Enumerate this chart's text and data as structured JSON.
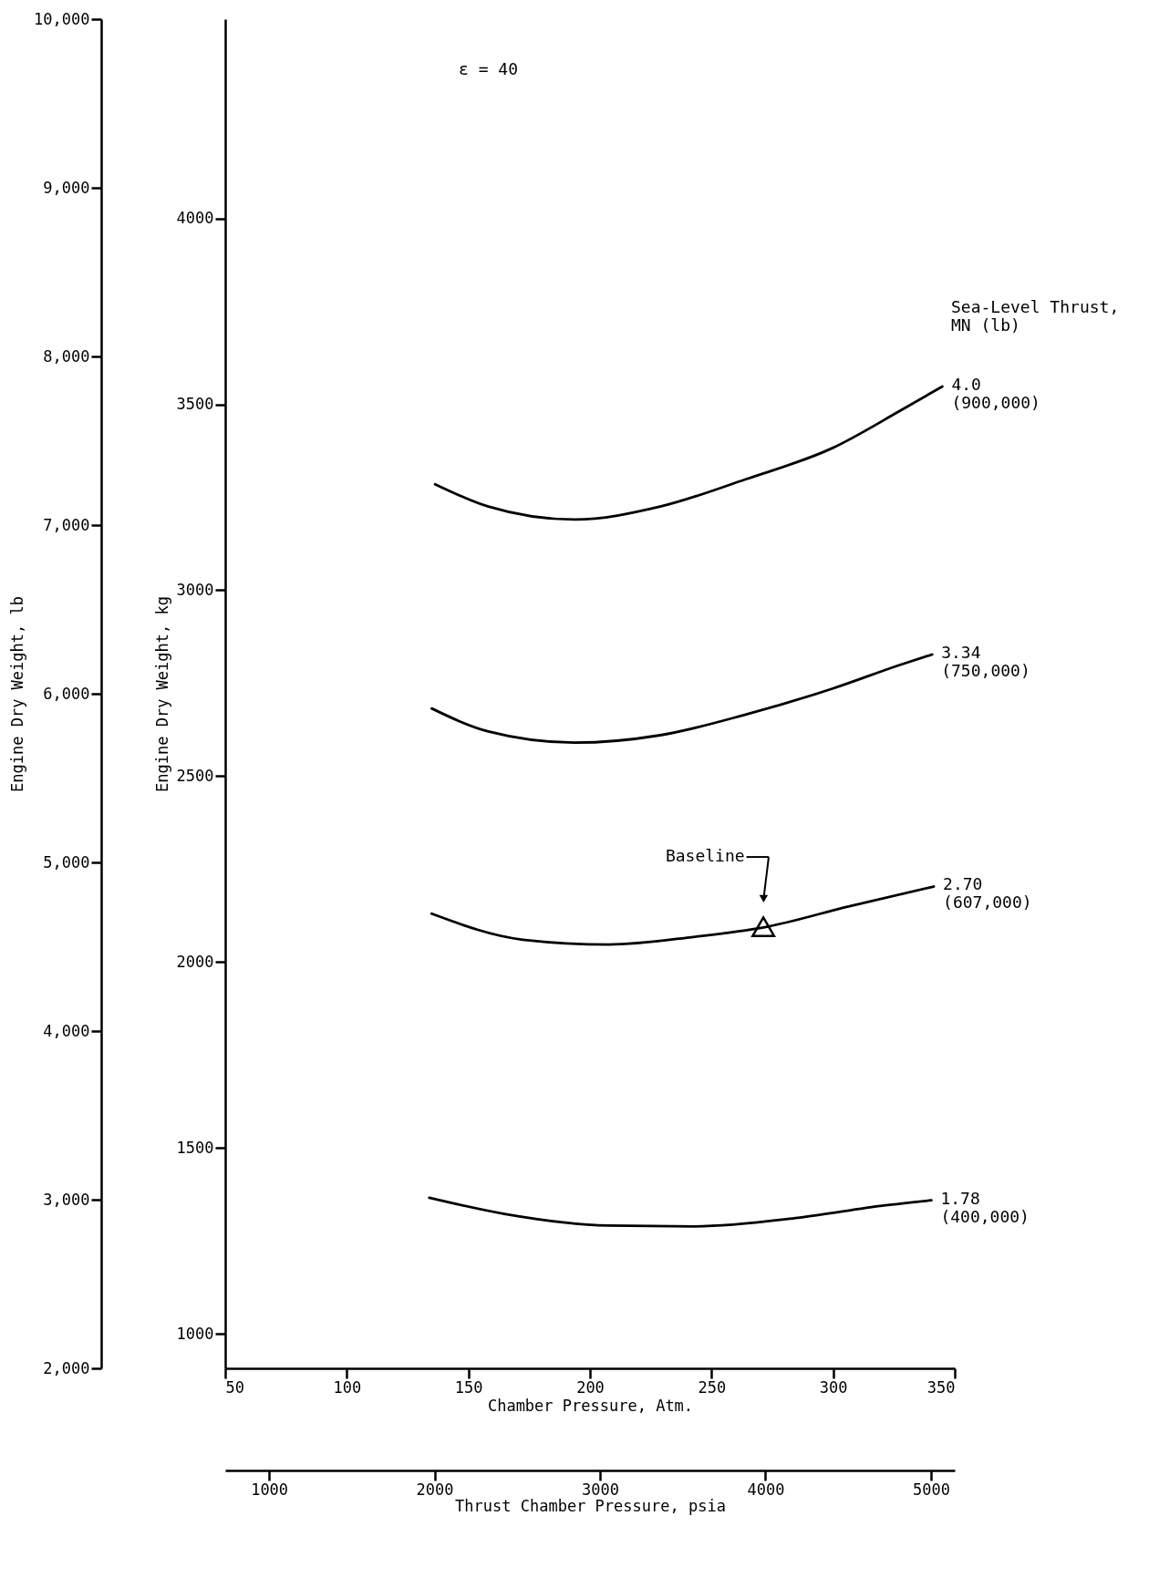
{
  "chart_data": {
    "type": "line",
    "xlabel": "Chamber Pressure, Atm.",
    "ylabel": "Engine Dry Weight, kg",
    "y2label": "Engine Dry Weight, lb",
    "x2label": "Thrust Chamber Pressure, psia",
    "legend_title": "Sea-Level Thrust,\nMN (lb)",
    "annotations": [
      "ε = 40",
      "Baseline"
    ],
    "xlim": [
      50,
      350
    ],
    "xticks": [
      50,
      100,
      150,
      200,
      250,
      300,
      350
    ],
    "x2lim": [
      734.8,
      5143.6
    ],
    "x2ticks": [
      1000,
      2000,
      3000,
      4000,
      5000
    ],
    "ylim": [
      907.2,
      4535.9
    ],
    "yticks": [
      1000,
      1500,
      2000,
      2500,
      3000,
      3500,
      4000
    ],
    "y2lim": [
      2000,
      10000
    ],
    "y2ticks": [
      {
        "value": 2000,
        "label": "2,000"
      },
      {
        "value": 3000,
        "label": "3,000"
      },
      {
        "value": 4000,
        "label": "4,000"
      },
      {
        "value": 5000,
        "label": "5,000"
      },
      {
        "value": 6000,
        "label": "6,000"
      },
      {
        "value": 7000,
        "label": "7,000"
      },
      {
        "value": 8000,
        "label": "8,000"
      },
      {
        "value": 9000,
        "label": "9,000"
      },
      {
        "value": 10000,
        "label": "10,000"
      }
    ],
    "grid": false,
    "series": [
      {
        "name": "4.0\n(900,000)",
        "color": "#000000",
        "x": [
          136.3,
          158.2,
          193.6,
          228.9,
          264.3,
          299.6,
          327.9,
          344.9
        ],
        "values": [
          3285,
          3225,
          3190,
          3225,
          3299,
          3382,
          3484,
          3548
        ]
      },
      {
        "name": "3.34\n(750,000)",
        "color": "#000000",
        "x": [
          134.9,
          158.2,
          193.6,
          228.9,
          264.3,
          299.6,
          327.9,
          340.7
        ],
        "values": [
          2682,
          2620,
          2590,
          2610,
          2666,
          2735,
          2800,
          2827
        ]
      },
      {
        "name": "2.70\n(607,000)",
        "color": "#000000",
        "x": [
          134.9,
          172.4,
          207.7,
          243.1,
          271.4,
          306.7,
          341.4
        ],
        "values": [
          2130,
          2060,
          2047,
          2068,
          2093,
          2150,
          2203
        ]
      },
      {
        "name": "1.78\n(400,000)",
        "color": "#000000",
        "x": [
          133.9,
          165.3,
          207.7,
          243.1,
          285.5,
          320.8,
          340.4
        ],
        "values": [
          1366,
          1322,
          1291,
          1289,
          1312,
          1345,
          1359
        ]
      },
      {
        "type": "scatter",
        "marker": "triangle",
        "color": "#000000",
        "x": [
          271.3
        ],
        "values": [
          2095
        ]
      }
    ]
  }
}
